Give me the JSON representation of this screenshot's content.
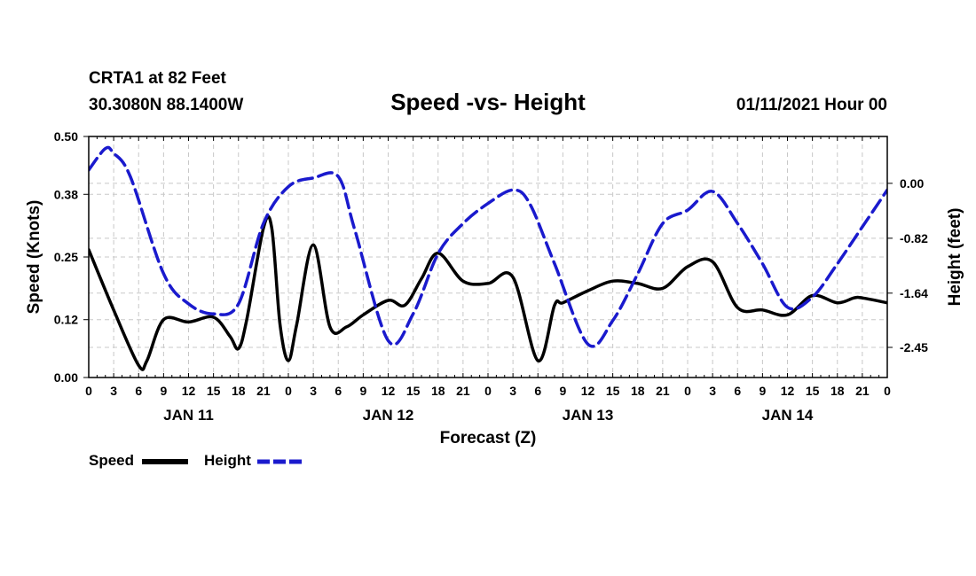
{
  "header": {
    "station_line": "CRTA1 at 82 Feet",
    "coords_line": "30.3080N 88.1400W",
    "title": "Speed -vs- Height",
    "date_line": "01/11/2021 Hour 00"
  },
  "legend": {
    "speed_label": "Speed",
    "height_label": "Height"
  },
  "colors": {
    "speed": "#000000",
    "height": "#1a1acd",
    "grid": "#c8c8c8"
  },
  "chart_data": {
    "type": "line",
    "title": "Speed -vs- Height",
    "xlabel": "Forecast (Z)",
    "ylabel": "Speed (Knots)",
    "y2label": "Height (feet)",
    "xlim": [
      0,
      96
    ],
    "ylim": [
      0,
      0.5
    ],
    "y2lim": [
      -2.9,
      0.7
    ],
    "x_ticks": [
      0,
      3,
      6,
      9,
      12,
      15,
      18,
      21,
      24,
      27,
      30,
      33,
      36,
      39,
      42,
      45,
      48,
      51,
      54,
      57,
      60,
      63,
      66,
      69,
      72,
      75,
      78,
      81,
      84,
      87,
      90,
      93,
      96
    ],
    "x_tick_labels": [
      "0",
      "3",
      "6",
      "9",
      "12",
      "15",
      "18",
      "21",
      "0",
      "3",
      "6",
      "9",
      "12",
      "15",
      "18",
      "21",
      "0",
      "3",
      "6",
      "9",
      "12",
      "15",
      "18",
      "21",
      "0",
      "3",
      "6",
      "9",
      "12",
      "15",
      "18",
      "21",
      "0"
    ],
    "day_labels": [
      {
        "label": "JAN 11",
        "x": 12
      },
      {
        "label": "JAN 12",
        "x": 36
      },
      {
        "label": "JAN 13",
        "x": 60
      },
      {
        "label": "JAN 14",
        "x": 84
      }
    ],
    "y_ticks": [
      0.0,
      0.12,
      0.25,
      0.38,
      0.5
    ],
    "y_tick_labels": [
      "0.00",
      "0.12",
      "0.25",
      "0.38",
      "0.50"
    ],
    "y2_ticks": [
      0.0,
      -0.82,
      -1.64,
      -2.45
    ],
    "y2_tick_labels": [
      "0.00",
      "-0.82",
      "-1.64",
      "-2.45"
    ],
    "grid": true,
    "series": [
      {
        "name": "Speed",
        "axis": "left",
        "style": "solid",
        "x": [
          0,
          3,
          6,
          7,
          9,
          12,
          15,
          17,
          18,
          19,
          21,
          22,
          23,
          24,
          25,
          27,
          29,
          31,
          33,
          36,
          38,
          40,
          42,
          45,
          48,
          51,
          54,
          56,
          57,
          60,
          63,
          66,
          69,
          72,
          75,
          78,
          81,
          84,
          87,
          90,
          92,
          93,
          96
        ],
        "values": [
          0.265,
          0.14,
          0.025,
          0.035,
          0.12,
          0.115,
          0.125,
          0.085,
          0.06,
          0.12,
          0.31,
          0.31,
          0.11,
          0.035,
          0.11,
          0.275,
          0.105,
          0.105,
          0.13,
          0.16,
          0.15,
          0.205,
          0.258,
          0.2,
          0.195,
          0.208,
          0.035,
          0.15,
          0.155,
          0.18,
          0.2,
          0.195,
          0.185,
          0.23,
          0.24,
          0.145,
          0.14,
          0.13,
          0.17,
          0.155,
          0.165,
          0.165,
          0.155
        ]
      },
      {
        "name": "Height",
        "axis": "right",
        "style": "dashed",
        "x": [
          0,
          2,
          3,
          5,
          9,
          12,
          15,
          18,
          21,
          24,
          27,
          30,
          32,
          36,
          39,
          42,
          45,
          48,
          51,
          53,
          56,
          60,
          63,
          66,
          69,
          72,
          75,
          78,
          81,
          84,
          87,
          90,
          93,
          96
        ],
        "values": [
          0.2,
          0.52,
          0.45,
          0.1,
          -1.35,
          -1.8,
          -1.95,
          -1.8,
          -0.6,
          -0.05,
          0.08,
          0.1,
          -0.7,
          -2.35,
          -1.95,
          -1.05,
          -0.6,
          -0.3,
          -0.1,
          -0.3,
          -1.2,
          -2.4,
          -2.05,
          -1.35,
          -0.6,
          -0.4,
          -0.12,
          -0.6,
          -1.2,
          -1.85,
          -1.7,
          -1.2,
          -0.65,
          -0.1
        ]
      }
    ]
  }
}
